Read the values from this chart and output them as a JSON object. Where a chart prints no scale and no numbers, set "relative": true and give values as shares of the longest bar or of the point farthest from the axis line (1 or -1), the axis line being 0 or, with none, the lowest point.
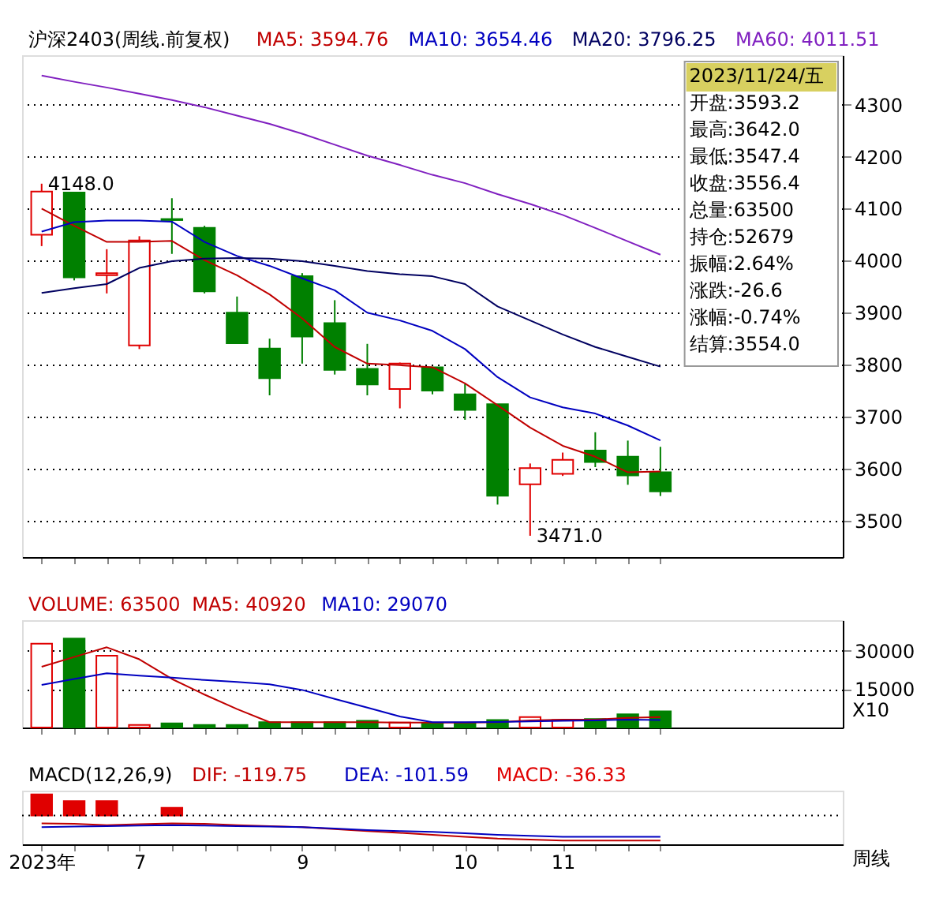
{
  "chart_data": [
    {
      "type": "candlestick",
      "title": "沪深2403(周线.前复权)",
      "categories": [
        null,
        null,
        null,
        null,
        null,
        null,
        null,
        null,
        null,
        null,
        null,
        null,
        null,
        null,
        null,
        null,
        null,
        null,
        null,
        null
      ],
      "ohlc": [
        [
          4050,
          4148,
          4028,
          4133
        ],
        [
          4131,
          4131,
          3962,
          3968
        ],
        [
          3972,
          4022,
          3937,
          3976
        ],
        [
          3837,
          4047,
          3830,
          4039
        ],
        [
          4080,
          4120,
          4013,
          4078
        ],
        [
          4063,
          4067,
          3937,
          3941
        ],
        [
          3900,
          3931,
          3841,
          3841
        ],
        [
          3831,
          3850,
          3741,
          3774
        ],
        [
          3970,
          3976,
          3802,
          3854
        ],
        [
          3880,
          3924,
          3781,
          3790
        ],
        [
          3792,
          3840,
          3741,
          3762
        ],
        [
          3753,
          3804,
          3716,
          3802
        ],
        [
          3795,
          3795,
          3743,
          3750
        ],
        [
          3743,
          3763,
          3694,
          3713
        ],
        [
          3724,
          3724,
          3531,
          3548
        ],
        [
          3570,
          3610,
          3471,
          3601
        ],
        [
          3590,
          3631,
          3586,
          3617
        ],
        [
          3635,
          3670,
          3603,
          3613
        ],
        [
          3623,
          3654,
          3569,
          3587
        ],
        [
          3593.2,
          3642.0,
          3547.4,
          3556.4
        ]
      ],
      "colors": [
        "#e00000",
        "#008000",
        "#e00000",
        "#e00000",
        "#008000",
        "#008000",
        "#008000",
        "#008000",
        "#008000",
        "#008000",
        "#008000",
        "#e00000",
        "#008000",
        "#008000",
        "#008000",
        "#e00000",
        "#e00000",
        "#008000",
        "#008000",
        "#008000"
      ],
      "series": [
        {
          "name": "MA5: 3594.76",
          "type": "line",
          "color": "#c00000",
          "values": [
            4100,
            4067,
            4036,
            4036,
            4038,
            4001,
            3972,
            3935,
            3889,
            3834,
            3802,
            3799,
            3795,
            3764,
            3722,
            3679,
            3644,
            3623,
            3593,
            3594.76
          ]
        },
        {
          "name": "MA10: 3654.46",
          "type": "line",
          "color": "#0000c0",
          "values": [
            4056,
            4074,
            4077,
            4077,
            4075,
            4036,
            4009,
            3990,
            3966,
            3943,
            3900,
            3885,
            3865,
            3830,
            3776,
            3737,
            3718,
            3706,
            3683,
            3654.46
          ]
        },
        {
          "name": "MA20: 3796.25",
          "type": "line",
          "color": "#000060",
          "values": [
            3938,
            3947,
            3955,
            3986,
            3999,
            4004,
            4005,
            4004,
            3999,
            3990,
            3980,
            3974,
            3970,
            3955,
            3912,
            3885,
            3858,
            3834,
            3815,
            3796.25
          ]
        },
        {
          "name": "MA60: 4011.51",
          "type": "line",
          "color": "#8020c0",
          "values": [
            4356,
            4344,
            4333,
            4321,
            4309,
            4295,
            4279,
            4263,
            4244,
            4223,
            4202,
            4184,
            4165,
            4149,
            4128,
            4109,
            4088,
            4063,
            4037,
            4011.51
          ]
        }
      ],
      "ylim": [
        3430,
        4395
      ],
      "yticks": [
        3500,
        3600,
        3700,
        3800,
        3900,
        4000,
        4100,
        4200,
        4300
      ],
      "grid": "y",
      "tick_labels": "y",
      "annotations": [
        "4148.0",
        "3471.0",
        "2023/11/24/五",
        "开盘:3593.2",
        "最高:3642.0",
        "最低:3547.4",
        "收盘:3556.4",
        "总量:63500",
        "持仓:52679",
        "振幅:2.64%",
        "涨跌:-26.6",
        "涨幅:-0.74%",
        "结算:3554.0"
      ]
    },
    {
      "type": "bar",
      "categories": [
        null,
        null,
        null,
        null,
        null,
        null,
        null,
        null,
        null,
        null,
        null,
        null,
        null,
        null,
        null,
        null,
        null,
        null,
        null,
        null
      ],
      "series": [
        {
          "name": "VOLUME: 63500",
          "type": "bar",
          "color": "#c00000",
          "values": [
            32800,
            34800,
            28100,
            1000,
            1600,
            1000,
            1000,
            2100,
            2100,
            2100,
            2600,
            1900,
            1600,
            1600,
            2900,
            4100,
            2900,
            3300,
            5200,
            6350
          ],
          "colors": [
            "#e00000",
            "#008000",
            "#e00000",
            "#e00000",
            "#008000",
            "#008000",
            "#008000",
            "#008000",
            "#008000",
            "#008000",
            "#008000",
            "#e00000",
            "#008000",
            "#008000",
            "#008000",
            "#e00000",
            "#e00000",
            "#008000",
            "#008000",
            "#008000"
          ]
        },
        {
          "name": "MA5: 40920",
          "type": "line",
          "color": "#c00000",
          "values": [
            23800,
            27600,
            31400,
            26700,
            19000,
            12900,
            7200,
            2100,
            2100,
            2100,
            2100,
            1900,
            1900,
            1900,
            2100,
            2800,
            3100,
            3100,
            3800,
            4092
          ]
        },
        {
          "name": "MA10: 29070",
          "type": "line",
          "color": "#0000c0",
          "values": [
            16700,
            19000,
            21200,
            20300,
            19500,
            18600,
            17800,
            16900,
            14700,
            11200,
            7800,
            4300,
            2100,
            2100,
            2200,
            2400,
            2600,
            2800,
            3100,
            2907
          ]
        }
      ],
      "ylim": [
        0,
        42000
      ],
      "yticks": [
        15000,
        30000
      ],
      "grid": "y",
      "tick_labels": "y",
      "annotations": [
        "X10"
      ]
    },
    {
      "type": "line",
      "title": "MACD(12,26,9)",
      "relative": true,
      "categories": [
        "2023年",
        null,
        null,
        "7",
        null,
        null,
        null,
        null,
        "9",
        null,
        null,
        null,
        null,
        "10",
        null,
        null,
        "11",
        null,
        null,
        null
      ],
      "series": [
        {
          "name": "DIF: -119.75",
          "type": "line",
          "color": "#c00000",
          "values": [
            -0.31,
            -0.33,
            -0.38,
            -0.34,
            -0.31,
            -0.33,
            -0.38,
            -0.42,
            -0.46,
            -0.54,
            -0.62,
            -0.69,
            -0.77,
            -0.85,
            -0.92,
            -0.96,
            -1.0,
            -1.0,
            -1.0,
            -1.0
          ]
        },
        {
          "name": "DEA: -101.59",
          "type": "line",
          "color": "#0000c0",
          "values": [
            -0.46,
            -0.44,
            -0.42,
            -0.4,
            -0.38,
            -0.4,
            -0.42,
            -0.44,
            -0.46,
            -0.52,
            -0.58,
            -0.62,
            -0.65,
            -0.71,
            -0.77,
            -0.81,
            -0.85,
            -0.85,
            -0.85,
            -0.85
          ]
        },
        {
          "name": "MACD: -36.33",
          "type": "bar",
          "color": "#e00000",
          "values": [
            0.85,
            0.58,
            0.58,
            null,
            0.31,
            null,
            null,
            null,
            null,
            null,
            null,
            null,
            null,
            null,
            null,
            null,
            null,
            null,
            null,
            null
          ],
          "colors": [
            "#e00000",
            "#e00000",
            "#e00000",
            null,
            "#e00000",
            null,
            null,
            null,
            null,
            null,
            null,
            null,
            null,
            null,
            null,
            null,
            null,
            null,
            null,
            null
          ]
        }
      ],
      "tick_labels": "x",
      "ref_lines": [
        {
          "axis": "y",
          "value": 0,
          "color": "#000000",
          "line_style": "dotted"
        }
      ],
      "annotations": [
        "周线"
      ]
    }
  ]
}
